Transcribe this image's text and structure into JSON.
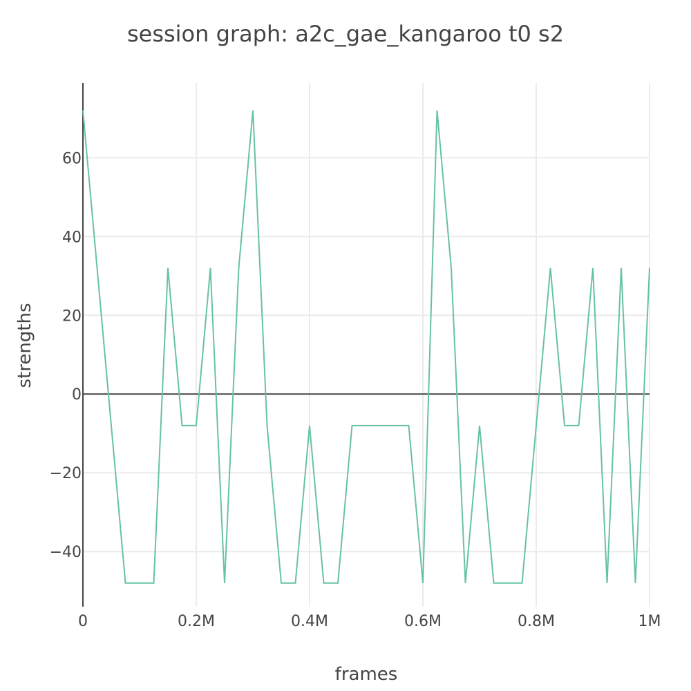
{
  "chart_data": {
    "type": "line",
    "title": "session graph: a2c_gae_kangaroo t0 s2",
    "xlabel": "frames",
    "ylabel": "strengths",
    "xlim": [
      0,
      1000000
    ],
    "ylim": [
      -54,
      79
    ],
    "x_ticks": [
      {
        "value": 0,
        "label": "0"
      },
      {
        "value": 200000,
        "label": "0.2M"
      },
      {
        "value": 400000,
        "label": "0.4M"
      },
      {
        "value": 600000,
        "label": "0.6M"
      },
      {
        "value": 800000,
        "label": "0.8M"
      },
      {
        "value": 1000000,
        "label": "1M"
      }
    ],
    "y_ticks": [
      {
        "value": -40,
        "label": "−40"
      },
      {
        "value": -20,
        "label": "−20"
      },
      {
        "value": 0,
        "label": "0"
      },
      {
        "value": 20,
        "label": "20"
      },
      {
        "value": 40,
        "label": "40"
      },
      {
        "value": 60,
        "label": "60"
      }
    ],
    "grid": true,
    "line_color": "#66c2a5",
    "series": [
      {
        "x": [
          0,
          25000,
          50000,
          75000,
          100000,
          125000,
          150000,
          175000,
          200000,
          225000,
          250000,
          275000,
          300000,
          325000,
          350000,
          375000,
          400000,
          425000,
          450000,
          475000,
          500000,
          525000,
          550000,
          575000,
          600000,
          625000,
          650000,
          675000,
          700000,
          725000,
          750000,
          775000,
          800000,
          825000,
          850000,
          875000,
          900000,
          925000,
          950000,
          975000,
          1000000
        ],
        "values": [
          72,
          32,
          -8,
          -48,
          -48,
          -48,
          32,
          -8,
          -8,
          32,
          -48,
          32,
          72,
          -8,
          -48,
          -48,
          -8,
          -48,
          -48,
          -8,
          -8,
          -8,
          -8,
          -8,
          -48,
          72,
          32,
          -48,
          -8,
          -48,
          -48,
          -48,
          -8,
          32,
          -8,
          -8,
          32,
          -48,
          32,
          -48,
          32
        ]
      }
    ]
  }
}
